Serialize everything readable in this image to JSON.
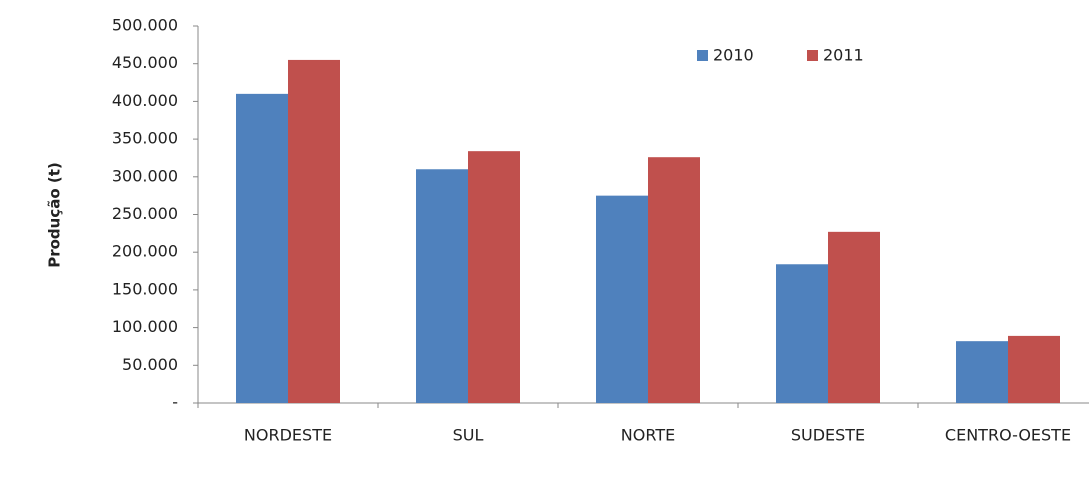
{
  "chart_data": {
    "type": "bar",
    "y_label": "Produção (t)",
    "categories": [
      "NORDESTE",
      "SUL",
      "NORTE",
      "SUDESTE",
      "CENTRO-OESTE"
    ],
    "series": [
      {
        "name": "2010",
        "color": "#4f81bd",
        "values": [
          410000,
          310000,
          275000,
          184000,
          82000
        ]
      },
      {
        "name": "2011",
        "color": "#c0504d",
        "values": [
          455000,
          334000,
          326000,
          227000,
          89000
        ]
      }
    ],
    "ylim": [
      0,
      500000
    ],
    "yticks": [
      {
        "value": 0,
        "label": "-"
      },
      {
        "value": 50000,
        "label": "50.000"
      },
      {
        "value": 100000,
        "label": "100.000"
      },
      {
        "value": 150000,
        "label": "150.000"
      },
      {
        "value": 200000,
        "label": "200.000"
      },
      {
        "value": 250000,
        "label": "250.000"
      },
      {
        "value": 300000,
        "label": "300.000"
      },
      {
        "value": 350000,
        "label": "350.000"
      },
      {
        "value": 400000,
        "label": "400.000"
      },
      {
        "value": 450000,
        "label": "450.000"
      },
      {
        "value": 500000,
        "label": "500.000"
      }
    ],
    "grid": false,
    "legend": "top-right"
  }
}
